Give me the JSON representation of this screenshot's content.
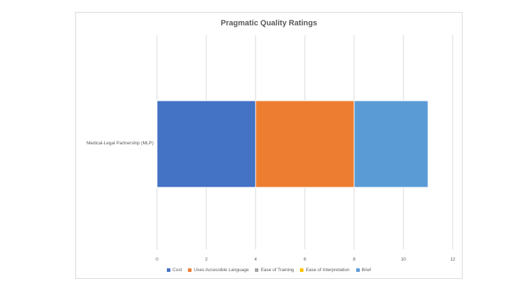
{
  "chart_data": {
    "type": "bar",
    "orientation": "horizontal",
    "stacked": true,
    "title": "Pragmatic Quality Ratings",
    "categories": [
      "Medical-Legal Partnership (MLP)"
    ],
    "series": [
      {
        "name": "Cost",
        "values": [
          4
        ],
        "color": "#4472C4"
      },
      {
        "name": "Uses Accessible Language",
        "values": [
          4
        ],
        "color": "#ED7D31"
      },
      {
        "name": "Ease of Training",
        "values": [
          0
        ],
        "color": "#A5A5A5"
      },
      {
        "name": "Ease of Interpretation",
        "values": [
          0
        ],
        "color": "#FFC000"
      },
      {
        "name": "Brief",
        "values": [
          3
        ],
        "color": "#5B9BD5"
      }
    ],
    "xlim": [
      0,
      12
    ],
    "xticks": [
      "0",
      "2",
      "4",
      "6",
      "8",
      "10",
      "12"
    ],
    "grid": true,
    "legend": "bottom"
  }
}
